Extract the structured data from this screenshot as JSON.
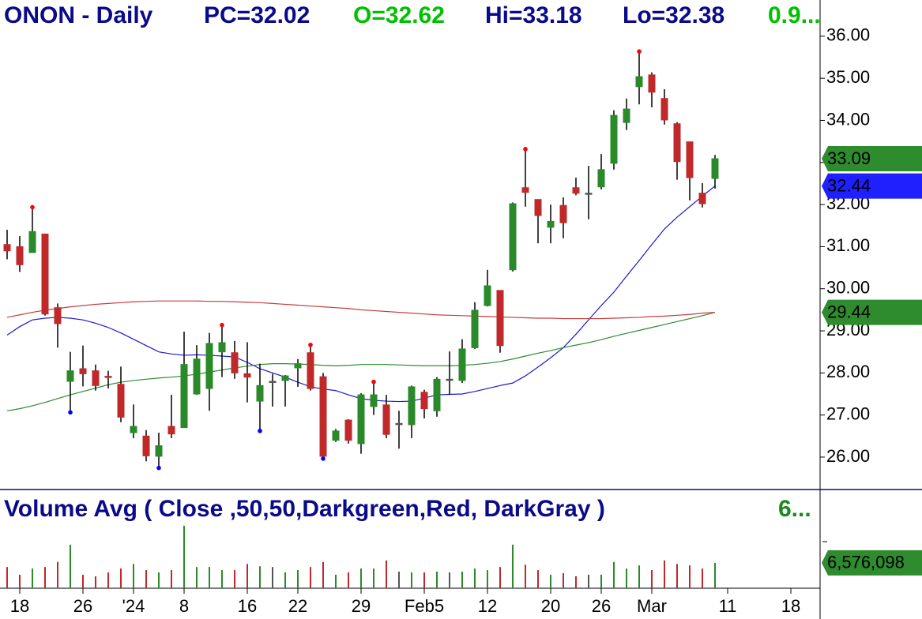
{
  "chart_data": [
    {
      "type": "candlestick",
      "title": "ONON - Daily",
      "header": [
        {
          "text": "PC=32.02",
          "color": "#0a0a8a"
        },
        {
          "text": "O=32.62",
          "color": "#00c000"
        },
        {
          "text": "Hi=33.18",
          "color": "#0a0a8a"
        },
        {
          "text": "Lo=32.38",
          "color": "#0a0a8a"
        },
        {
          "text": "0.9...",
          "color": "#00c000"
        }
      ],
      "title_color": "#0a0a8a",
      "categories": [
        null,
        "18",
        null,
        null,
        null,
        null,
        "26",
        null,
        null,
        null,
        "'24",
        null,
        null,
        null,
        "8",
        null,
        null,
        null,
        null,
        "16",
        null,
        null,
        null,
        "22",
        null,
        null,
        null,
        null,
        "29",
        null,
        null,
        null,
        null,
        "Feb5",
        null,
        null,
        null,
        null,
        "12",
        null,
        null,
        null,
        null,
        "20",
        null,
        null,
        null,
        "26",
        null,
        null,
        null,
        "Mar",
        null,
        null,
        null,
        null,
        null,
        "11",
        null,
        null,
        null,
        null,
        "18"
      ],
      "open": [
        31.05,
        31.0,
        30.86,
        31.3,
        29.55,
        27.8,
        28.1,
        28.05,
        27.92,
        27.73,
        26.58,
        26.5,
        26.02,
        26.73,
        26.7,
        27.5,
        27.63,
        28.5,
        28.48,
        27.98,
        27.33,
        27.8,
        27.82,
        28.12,
        28.48,
        27.91,
        26.4,
        26.88,
        26.32,
        27.2,
        27.24,
        26.8,
        26.77,
        27.54,
        27.1,
        27.85,
        27.82,
        28.6,
        29.6,
        29.96,
        30.45,
        32.4,
        32.12,
        31.46,
        31.98,
        32.4,
        32.27,
        32.42,
        32.98,
        33.95,
        34.8,
        35.08,
        34.52,
        33.92,
        33.49,
        32.27,
        32.62,
        null,
        null,
        null,
        null,
        null,
        null
      ],
      "high": [
        31.4,
        31.25,
        31.9,
        31.3,
        29.65,
        28.5,
        28.65,
        28.2,
        28.05,
        28.15,
        27.25,
        26.64,
        26.58,
        27.48,
        28.98,
        28.66,
        28.95,
        29.1,
        28.76,
        28.73,
        28.22,
        27.98,
        27.95,
        28.33,
        28.63,
        28.0,
        26.67,
        26.9,
        27.52,
        27.75,
        27.48,
        27.1,
        27.7,
        27.6,
        27.9,
        28.51,
        28.8,
        29.68,
        30.45,
        29.96,
        32.05,
        33.28,
        32.12,
        32.0,
        32.17,
        32.64,
        32.92,
        33.2,
        34.24,
        34.52,
        35.6,
        35.14,
        34.74,
        33.96,
        33.49,
        32.51,
        33.18,
        null,
        null,
        null,
        null,
        null,
        null
      ],
      "low": [
        30.7,
        30.4,
        30.86,
        29.36,
        28.6,
        27.1,
        27.68,
        27.58,
        27.63,
        26.83,
        26.45,
        25.9,
        25.78,
        26.45,
        26.7,
        27.48,
        27.1,
        27.9,
        27.86,
        27.3,
        26.66,
        27.2,
        27.2,
        27.67,
        27.58,
        26.0,
        26.36,
        26.32,
        26.08,
        27.0,
        26.45,
        26.2,
        26.45,
        26.92,
        26.96,
        27.48,
        27.76,
        28.57,
        29.58,
        28.48,
        30.41,
        31.95,
        31.08,
        31.08,
        31.2,
        32.22,
        31.65,
        32.36,
        32.83,
        33.77,
        34.38,
        34.31,
        33.9,
        32.59,
        32.1,
        31.93,
        32.38,
        null,
        null,
        null,
        null,
        null,
        null
      ],
      "close": [
        30.9,
        30.57,
        31.36,
        29.4,
        29.17,
        28.05,
        27.98,
        27.7,
        27.9,
        26.95,
        26.73,
        26.03,
        26.27,
        26.55,
        28.2,
        28.33,
        28.7,
        28.72,
        28.0,
        27.9,
        27.7,
        27.8,
        27.93,
        28.22,
        27.63,
        26.02,
        26.62,
        26.4,
        27.48,
        27.48,
        26.54,
        26.8,
        27.67,
        27.15,
        27.85,
        27.85,
        28.57,
        29.49,
        30.07,
        28.65,
        32.02,
        32.29,
        31.74,
        31.6,
        31.57,
        32.27,
        32.27,
        32.83,
        34.12,
        34.27,
        35.04,
        34.67,
        34.01,
        33.02,
        32.64,
        32.02,
        33.09,
        null,
        null,
        null,
        null,
        null,
        null
      ],
      "up_color": "#2a8a2a",
      "down_color": "#c0282a",
      "flat_color": "#555555",
      "last_tag_color": "#2e8b2e",
      "pivot_highs": [
        2,
        17,
        24,
        29,
        41,
        50
      ],
      "pivot_high_color": "#ff0000",
      "pivot_lows": [
        5,
        12,
        20,
        25
      ],
      "pivot_low_color": "#0000ff",
      "overlays": [
        {
          "color": "#1a1ad0",
          "tag_color": "#2020ff",
          "values": [
            28.9,
            29.1,
            29.26,
            29.3,
            29.32,
            29.3,
            29.26,
            29.18,
            29.08,
            28.95,
            28.8,
            28.65,
            28.5,
            28.45,
            28.42,
            28.43,
            28.42,
            28.4,
            28.38,
            28.25,
            28.1,
            28.0,
            27.9,
            27.78,
            27.67,
            27.62,
            27.58,
            27.48,
            27.39,
            27.35,
            27.33,
            27.32,
            27.33,
            27.4,
            27.48,
            27.49,
            27.5,
            27.56,
            27.63,
            27.7,
            27.76,
            27.93,
            28.14,
            28.36,
            28.6,
            28.92,
            29.26,
            29.6,
            29.92,
            30.3,
            30.67,
            31.05,
            31.42,
            31.7,
            31.95,
            32.2,
            32.44,
            null,
            null,
            null,
            null,
            null,
            null
          ]
        },
        {
          "color": "#2e8b2e",
          "tag_color": "#2e8b2e",
          "values": [
            27.1,
            27.15,
            27.22,
            27.3,
            27.39,
            27.48,
            27.56,
            27.64,
            27.72,
            27.78,
            27.82,
            27.85,
            27.88,
            27.9,
            27.93,
            27.97,
            28.02,
            28.07,
            28.12,
            28.16,
            28.2,
            28.22,
            28.22,
            28.21,
            28.2,
            28.18,
            28.17,
            28.18,
            28.2,
            28.2,
            28.2,
            28.19,
            28.18,
            28.17,
            28.17,
            28.17,
            28.18,
            28.2,
            28.23,
            28.27,
            28.33,
            28.4,
            28.47,
            28.53,
            28.6,
            28.66,
            28.72,
            28.79,
            28.87,
            28.94,
            29.01,
            29.08,
            29.15,
            29.22,
            29.29,
            29.36,
            29.44,
            null,
            null,
            null,
            null,
            null,
            null
          ]
        },
        {
          "color": "#c83c3c",
          "values": [
            29.32,
            29.38,
            29.44,
            29.49,
            29.53,
            29.57,
            29.6,
            29.63,
            29.65,
            29.67,
            29.69,
            29.7,
            29.71,
            29.71,
            29.71,
            29.71,
            29.7,
            29.7,
            29.69,
            29.68,
            29.67,
            29.65,
            29.63,
            29.61,
            29.59,
            29.57,
            29.55,
            29.53,
            29.5,
            29.48,
            29.46,
            29.44,
            29.42,
            29.4,
            29.38,
            29.37,
            29.36,
            29.35,
            29.34,
            29.33,
            29.32,
            29.31,
            29.3,
            29.3,
            29.29,
            29.29,
            29.29,
            29.29,
            29.3,
            29.31,
            29.32,
            29.34,
            29.35,
            29.37,
            29.39,
            29.42,
            29.44,
            null,
            null,
            null,
            null,
            null,
            null
          ]
        }
      ],
      "ylim": [
        25.23,
        36.86
      ],
      "yticks": [
        {
          "value": 26,
          "label": "26.00"
        },
        {
          "value": 27,
          "label": "27.00"
        },
        {
          "value": 28,
          "label": "28.00"
        },
        {
          "value": 29,
          "label": "29.00"
        },
        {
          "value": 30,
          "label": "30.00"
        },
        {
          "value": 31,
          "label": "31.00"
        },
        {
          "value": 32,
          "label": "32.00"
        },
        {
          "value": 33,
          "label": "33.00"
        },
        {
          "value": 34,
          "label": "34.00"
        },
        {
          "value": 35,
          "label": "35.00"
        },
        {
          "value": 36,
          "label": "36.00"
        }
      ]
    },
    {
      "type": "volume",
      "title": "Volume Avg ( Close ,50,50,Darkgreen,Red, DarkGray )",
      "title_color": "#0a0a8a",
      "subtitle": "6...",
      "subtitle_color": "#1a8a1a",
      "values": [
        5500000,
        3500000,
        5100000,
        5500000,
        6800000,
        11300000,
        3500000,
        3100000,
        4100000,
        5100000,
        6300000,
        4700000,
        4100000,
        4700000,
        16200000,
        5500000,
        5500000,
        4700000,
        4700000,
        6300000,
        5700000,
        5500000,
        4100000,
        4700000,
        5500000,
        6800000,
        3500000,
        4100000,
        5100000,
        5100000,
        7200000,
        4300000,
        4100000,
        4100000,
        4300000,
        4100000,
        4300000,
        5100000,
        4700000,
        5500000,
        11300000,
        6100000,
        4700000,
        3500000,
        3900000,
        3100000,
        3500000,
        3500000,
        6800000,
        5100000,
        5900000,
        4700000,
        7200000,
        6300000,
        5900000,
        5100000,
        6576098,
        null,
        null,
        null,
        null,
        null,
        null
      ],
      "value_labels": [
        null,
        null,
        null,
        null,
        null,
        null,
        null,
        null,
        null,
        null,
        null,
        null,
        null,
        null,
        null,
        null,
        null,
        null,
        null,
        null,
        null,
        null,
        null,
        null,
        null,
        null,
        null,
        null,
        null,
        null,
        null,
        null,
        null,
        null,
        null,
        null,
        null,
        null,
        null,
        null,
        null,
        null,
        null,
        null,
        null,
        null,
        null,
        null,
        null,
        null,
        null,
        null,
        null,
        null,
        null,
        null,
        "6,576,098",
        null,
        null,
        null,
        null,
        null,
        null
      ],
      "tag_color": "#2e8b2e",
      "ylim": [
        0,
        25600000
      ]
    }
  ]
}
